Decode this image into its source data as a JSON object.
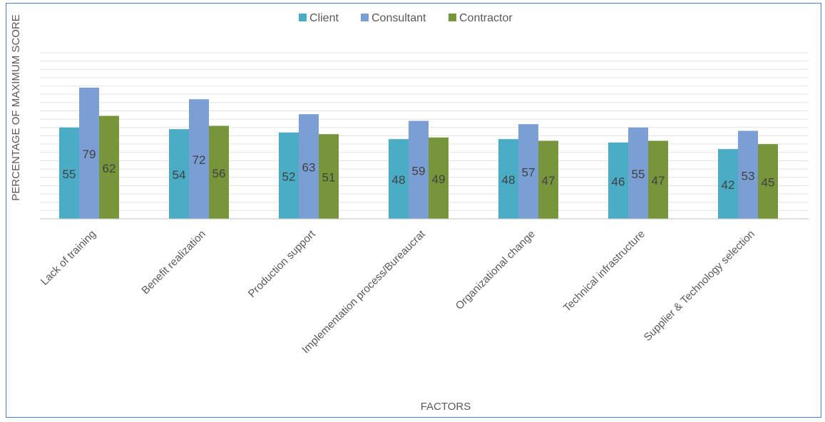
{
  "chart_data": {
    "type": "bar",
    "title": "",
    "xlabel": "FACTORS",
    "ylabel": "PERCENTAGE OF MAXIMUM SCORE",
    "ylim": [
      0,
      100
    ],
    "grid": true,
    "legend_position": "top-center",
    "categories": [
      "Lack of training",
      "Benefit realization",
      "Production support",
      "Implementation process/Bureaucrat",
      "Organizational change",
      "Technical infrastructure",
      "Supplier & Technology selection"
    ],
    "series": [
      {
        "name": "Client",
        "color": "#4bacc6",
        "values": [
          55,
          54,
          52,
          48,
          48,
          46,
          42
        ]
      },
      {
        "name": "Consultant",
        "color": "#7b9fd4",
        "values": [
          79,
          72,
          63,
          59,
          57,
          55,
          53
        ]
      },
      {
        "name": "Contractor",
        "color": "#77963b",
        "values": [
          62,
          56,
          51,
          49,
          47,
          47,
          45
        ]
      }
    ]
  }
}
